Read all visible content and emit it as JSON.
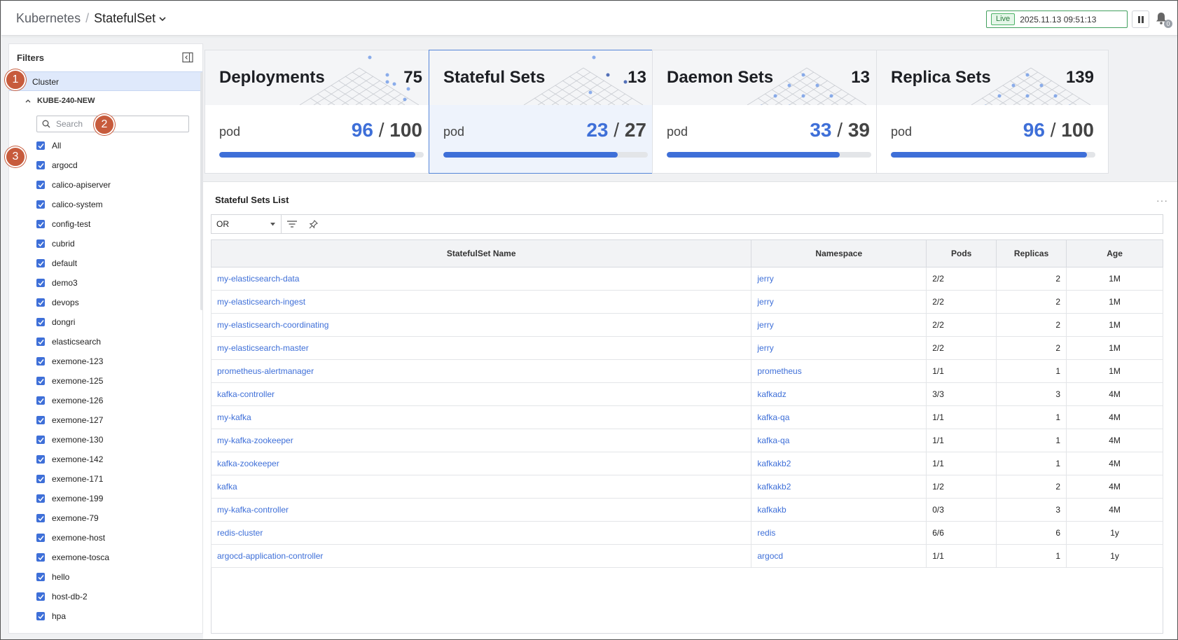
{
  "header": {
    "breadcrumb_root": "Kubernetes",
    "breadcrumb_sep": "/",
    "breadcrumb_current": "StatefulSet",
    "live_label": "Live",
    "timestamp": "2025.11.13 09:51:13",
    "notification_count": "0"
  },
  "sidebar": {
    "title": "Filters",
    "cluster_label": "Cluster",
    "cluster_name": "KUBE-240-NEW",
    "search_placeholder": "Search",
    "namespaces": [
      "All",
      "argocd",
      "calico-apiserver",
      "calico-system",
      "config-test",
      "cubrid",
      "default",
      "demo3",
      "devops",
      "dongri",
      "elasticsearch",
      "exemone-123",
      "exemone-125",
      "exemone-126",
      "exemone-127",
      "exemone-130",
      "exemone-142",
      "exemone-171",
      "exemone-199",
      "exemone-79",
      "exemone-host",
      "exemone-tosca",
      "hello",
      "host-db-2",
      "hpa"
    ]
  },
  "markers": [
    "1",
    "2",
    "3"
  ],
  "cards": [
    {
      "title": "Deployments",
      "count": "75",
      "pod_label": "pod",
      "ready": "96",
      "total": "100",
      "progress": 0.96,
      "selected": false
    },
    {
      "title": "Stateful Sets",
      "count": "13",
      "pod_label": "pod",
      "ready": "23",
      "total": "27",
      "progress": 0.852,
      "selected": true
    },
    {
      "title": "Daemon Sets",
      "count": "13",
      "pod_label": "pod",
      "ready": "33",
      "total": "39",
      "progress": 0.846,
      "selected": false
    },
    {
      "title": "Replica Sets",
      "count": "139",
      "pod_label": "pod",
      "ready": "96",
      "total": "100",
      "progress": 0.96,
      "selected": false
    }
  ],
  "list": {
    "title": "Stateful Sets List",
    "more": "···",
    "operator": "OR",
    "columns": [
      "StatefulSet Name",
      "Namespace",
      "Pods",
      "Replicas",
      "Age"
    ],
    "rows": [
      [
        "my-elasticsearch-data",
        "jerry",
        "2/2",
        "2",
        "1M"
      ],
      [
        "my-elasticsearch-ingest",
        "jerry",
        "2/2",
        "2",
        "1M"
      ],
      [
        "my-elasticsearch-coordinating",
        "jerry",
        "2/2",
        "2",
        "1M"
      ],
      [
        "my-elasticsearch-master",
        "jerry",
        "2/2",
        "2",
        "1M"
      ],
      [
        "prometheus-alertmanager",
        "prometheus",
        "1/1",
        "1",
        "1M"
      ],
      [
        "kafka-controller",
        "kafkadz",
        "3/3",
        "3",
        "4M"
      ],
      [
        "my-kafka",
        "kafka-qa",
        "1/1",
        "1",
        "4M"
      ],
      [
        "my-kafka-zookeeper",
        "kafka-qa",
        "1/1",
        "1",
        "4M"
      ],
      [
        "kafka-zookeeper",
        "kafkakb2",
        "1/1",
        "1",
        "4M"
      ],
      [
        "kafka",
        "kafkakb2",
        "1/2",
        "2",
        "4M"
      ],
      [
        "my-kafka-controller",
        "kafkakb",
        "0/3",
        "3",
        "4M"
      ],
      [
        "redis-cluster",
        "redis",
        "6/6",
        "6",
        "1y"
      ],
      [
        "argocd-application-controller",
        "argocd",
        "1/1",
        "1",
        "1y"
      ]
    ]
  },
  "colors": {
    "accent": "#3e6fd8",
    "marker": "#c75b3c",
    "live": "#4bb266"
  }
}
